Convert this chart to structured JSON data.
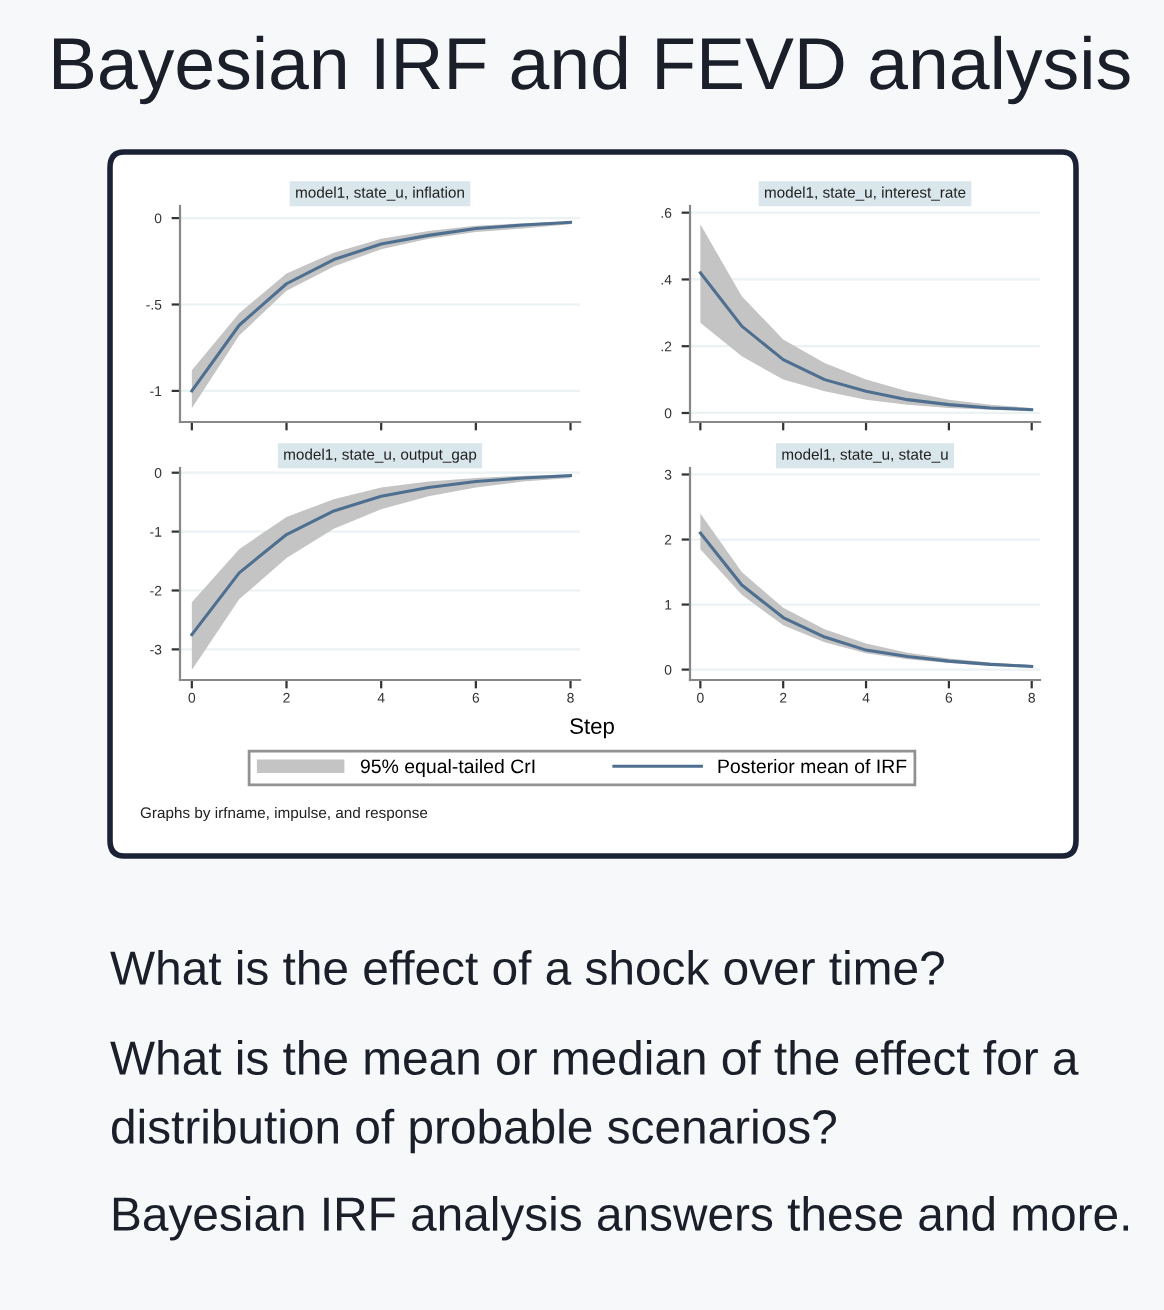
{
  "chart_data": [
    {
      "type": "other",
      "title": "Bayesian IRF and FEVD analysis"
    },
    {
      "type": "line",
      "title": "model1, state_u, inflation",
      "x": [
        0,
        1,
        2,
        3,
        4,
        5,
        6,
        7,
        8
      ],
      "xlim": [
        -0.25,
        8.2
      ],
      "xticks": [
        0,
        2,
        4,
        6,
        8
      ],
      "ylim": [
        -1.18,
        0.07
      ],
      "yticks": [
        {
          "value": 0,
          "label": "0"
        },
        {
          "value": -0.5,
          "label": "-.5"
        },
        {
          "value": -1,
          "label": "-1"
        }
      ],
      "grid": "y",
      "tick_labels": "y",
      "series": [
        {
          "color": "#4e6f8f",
          "values": [
            -1.0,
            -0.62,
            -0.38,
            -0.24,
            -0.15,
            -0.1,
            -0.06,
            -0.04,
            -0.025
          ],
          "lower": [
            -1.1,
            -0.68,
            -0.42,
            -0.28,
            -0.18,
            -0.12,
            -0.08,
            -0.06,
            -0.035
          ],
          "upper": [
            -0.88,
            -0.55,
            -0.32,
            -0.2,
            -0.12,
            -0.075,
            -0.045,
            -0.03,
            -0.02
          ]
        }
      ]
    },
    {
      "type": "line",
      "title": "model1, state_u, interest_rate",
      "x": [
        0,
        1,
        2,
        3,
        4,
        5,
        6,
        7,
        8
      ],
      "xlim": [
        -0.25,
        8.2
      ],
      "xticks": [
        0,
        2,
        4,
        6,
        8
      ],
      "ylim": [
        -0.027,
        0.62
      ],
      "yticks": [
        {
          "value": 0,
          "label": "0"
        },
        {
          "value": 0.2,
          "label": ".2"
        },
        {
          "value": 0.4,
          "label": ".4"
        },
        {
          "value": 0.6,
          "label": ".6"
        }
      ],
      "grid": "y",
      "tick_labels": "y",
      "series": [
        {
          "color": "#4e6f8f",
          "values": [
            0.42,
            0.26,
            0.16,
            0.1,
            0.065,
            0.04,
            0.025,
            0.015,
            0.01
          ],
          "lower": [
            0.27,
            0.17,
            0.1,
            0.065,
            0.04,
            0.025,
            0.015,
            0.01,
            0.005
          ],
          "upper": [
            0.565,
            0.35,
            0.22,
            0.15,
            0.1,
            0.065,
            0.04,
            0.025,
            0.015
          ]
        }
      ]
    },
    {
      "type": "line",
      "title": "model1, state_u, output_gap",
      "x": [
        0,
        1,
        2,
        3,
        4,
        5,
        6,
        7,
        8
      ],
      "xlim": [
        -0.25,
        8.2
      ],
      "xticks": [
        0,
        2,
        4,
        6,
        8
      ],
      "ylim": [
        -3.52,
        0.08
      ],
      "yticks": [
        0,
        -1,
        -2,
        -3
      ],
      "grid": "y",
      "series": [
        {
          "color": "#4e6f8f",
          "values": [
            -2.75,
            -1.7,
            -1.05,
            -0.65,
            -0.4,
            -0.25,
            -0.15,
            -0.09,
            -0.05
          ],
          "lower": [
            -3.35,
            -2.15,
            -1.45,
            -0.95,
            -0.62,
            -0.4,
            -0.25,
            -0.15,
            -0.09
          ],
          "upper": [
            -2.2,
            -1.3,
            -0.75,
            -0.45,
            -0.25,
            -0.15,
            -0.09,
            -0.05,
            -0.03
          ]
        }
      ]
    },
    {
      "type": "line",
      "title": "model1, state_u, state_u",
      "xlabel": "Step",
      "x": [
        0,
        1,
        2,
        3,
        4,
        5,
        6,
        7,
        8
      ],
      "xlim": [
        -0.25,
        8.2
      ],
      "xticks": [
        0,
        2,
        4,
        6,
        8
      ],
      "ylim": [
        -0.16,
        3.1
      ],
      "yticks": [
        0,
        1,
        2,
        3
      ],
      "grid": "y",
      "legend": "bottom",
      "annotations": [
        "95% equal-tailed CrI",
        "Graphs by irfname, impulse, and response"
      ],
      "series": [
        {
          "name": "Posterior mean of IRF",
          "color": "#4e6f8f",
          "values": [
            2.1,
            1.3,
            0.8,
            0.5,
            0.3,
            0.2,
            0.13,
            0.08,
            0.05
          ],
          "lower": [
            1.85,
            1.15,
            0.68,
            0.42,
            0.25,
            0.16,
            0.1,
            0.06,
            0.035
          ],
          "upper": [
            2.4,
            1.5,
            0.95,
            0.62,
            0.4,
            0.26,
            0.17,
            0.11,
            0.07
          ]
        }
      ]
    },
    {
      "type": "other",
      "annotations": [
        "What is the effect of a shock over time?",
        "What is the mean or median of the effect for a distribution of probable scenarios?",
        "Bayesian IRF analysis answers these and more."
      ]
    }
  ]
}
